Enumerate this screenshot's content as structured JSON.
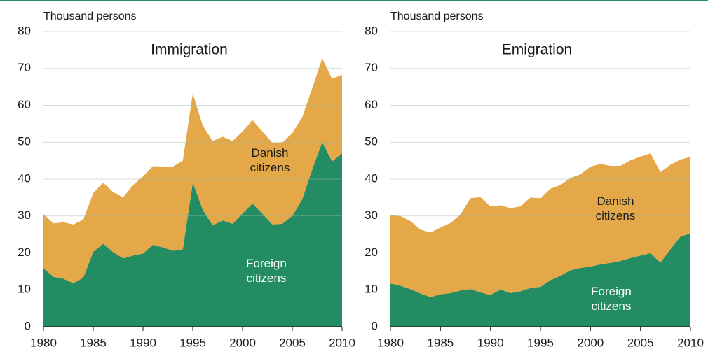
{
  "chart_data": [
    {
      "type": "area",
      "title": "Immigration",
      "ylabel": "Thousand persons",
      "x": [
        1980,
        1981,
        1982,
        1983,
        1984,
        1985,
        1986,
        1987,
        1988,
        1989,
        1990,
        1991,
        1992,
        1993,
        1994,
        1995,
        1996,
        1997,
        1998,
        1999,
        2000,
        2001,
        2002,
        2003,
        2004,
        2005,
        2006,
        2007,
        2008,
        2009,
        2010
      ],
      "series": [
        {
          "name": "Foreign citizens",
          "color": "#248c63",
          "values": [
            15.9,
            13.5,
            13,
            11.8,
            13.3,
            20.3,
            22.5,
            20.2,
            18.5,
            19.3,
            19.8,
            22.2,
            21.5,
            20.6,
            21,
            39,
            31.7,
            27.5,
            28.8,
            27.9,
            30.7,
            33.4,
            30.6,
            27.7,
            27.9,
            30.1,
            34.5,
            42.6,
            50,
            44.8,
            47
          ]
        },
        {
          "name": "Danish citizens",
          "color": "#e4a848",
          "values": [
            14.6,
            14.5,
            15.3,
            15.9,
            15.7,
            15.9,
            16.5,
            16.3,
            16.5,
            19.1,
            20.9,
            21.3,
            21.9,
            22.8,
            24,
            24.2,
            22.8,
            22.8,
            22.7,
            22.4,
            22.2,
            22.6,
            22.3,
            22.1,
            22,
            22.4,
            22.3,
            22,
            22.7,
            22.4,
            21.3
          ]
        }
      ],
      "xlim": [
        1980,
        2010
      ],
      "xticks": [
        1980,
        1985,
        1990,
        1995,
        2000,
        2005,
        2010
      ],
      "ylim": [
        0,
        80
      ],
      "yticks": [
        0,
        10,
        20,
        30,
        40,
        50,
        60,
        70,
        80
      ],
      "grid": true,
      "stacked": true
    },
    {
      "type": "area",
      "title": "Emigration",
      "ylabel": "Thousand persons",
      "x": [
        1980,
        1981,
        1982,
        1983,
        1984,
        1985,
        1986,
        1987,
        1988,
        1989,
        1990,
        1991,
        1992,
        1993,
        1994,
        1995,
        1996,
        1997,
        1998,
        1999,
        2000,
        2001,
        2002,
        2003,
        2004,
        2005,
        2006,
        2007,
        2008,
        2009,
        2010
      ],
      "series": [
        {
          "name": "Foreign citizens",
          "color": "#248c63",
          "values": [
            11.7,
            11.1,
            10.2,
            9,
            8,
            8.8,
            9.1,
            9.8,
            10.2,
            9.3,
            8.6,
            10.1,
            9.1,
            9.6,
            10.5,
            10.8,
            12.6,
            13.8,
            15.3,
            15.9,
            16.3,
            16.9,
            17.3,
            17.8,
            18.6,
            19.3,
            19.9,
            17.4,
            21,
            24.4,
            25.3
          ]
        },
        {
          "name": "Danish citizens",
          "color": "#e4a848",
          "values": [
            18.5,
            18.9,
            18.4,
            17.3,
            17.5,
            18.1,
            19,
            20.6,
            24.6,
            25.8,
            24,
            22.8,
            23,
            23,
            24.5,
            24,
            24.8,
            24.6,
            25,
            25.4,
            27.1,
            27.2,
            26.3,
            25.8,
            26.5,
            26.8,
            27.1,
            24.5,
            22.9,
            20.9,
            20.7
          ]
        }
      ],
      "xlim": [
        1980,
        2010
      ],
      "xticks": [
        1980,
        1985,
        1990,
        1995,
        2000,
        2005,
        2010
      ],
      "ylim": [
        0,
        80
      ],
      "yticks": [
        0,
        10,
        20,
        30,
        40,
        50,
        60,
        70,
        80
      ],
      "grid": true,
      "stacked": true
    }
  ]
}
